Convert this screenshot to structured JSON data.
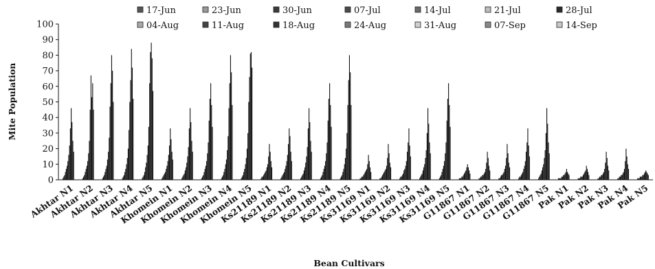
{
  "chart_data": {
    "type": "bar",
    "xlabel": "Bean Cultivars",
    "ylabel": "Mite Population",
    "ylim": [
      0,
      100
    ],
    "yticks": [
      "0",
      "10",
      "20",
      "30",
      "40",
      "50",
      "60",
      "70",
      "80",
      "90",
      "100"
    ],
    "legend_position": "top",
    "bar_color": "#111111",
    "categories": [
      "Akhtar N1",
      "Akhtar N2",
      "Akhtar N3",
      "Akhtar N4",
      "Akhtar N5",
      "Khomein N1",
      "Khomein N2",
      "Khomein N3",
      "Khomein N4",
      "Khomein N5",
      "Ks21189 N1",
      "Ks21189 N2",
      "Ks21189 N3",
      "Ks21189 N4",
      "Ks21189 N5",
      "Ks31169 N1",
      "Ks31169 N2",
      "Ks31169 N3",
      "Ks31169 N4",
      "Ks31169 N5",
      "G11867 N1",
      "G11867 N2",
      "G11867 N3",
      "G11867 N4",
      "G11867 N5",
      "Pak N1",
      "Pak N2",
      "Pak N3",
      "Pak N4",
      "Pak N5"
    ],
    "series_names": [
      "17-Jun",
      "23-Jun",
      "30-Jun",
      "07-Jul",
      "14-Jul",
      "21-Jul",
      "28-Jul",
      "04-Aug",
      "11-Aug",
      "18-Aug",
      "24-Aug",
      "31-Aug",
      "07-Sep",
      "14-Sep"
    ],
    "series_colors": [
      "#555555",
      "#9a9a9a",
      "#3a3a3a",
      "#4a4a4a",
      "#6a6a6a",
      "#bdbdbd",
      "#2a2a2a",
      "#a8a8a8",
      "#444444",
      "#333333",
      "#7a7a7a",
      "#d0d0d0",
      "#8a8a8a",
      "#c8c8c8"
    ],
    "values": [
      [
        1,
        2,
        3,
        5,
        7,
        9,
        12,
        16,
        22,
        33,
        46,
        37,
        25,
        18
      ],
      [
        1,
        2,
        3,
        5,
        7,
        9,
        12,
        17,
        25,
        45,
        67,
        53,
        62,
        45
      ],
      [
        1,
        2,
        3,
        5,
        7,
        9,
        13,
        18,
        27,
        47,
        62,
        80,
        70,
        50
      ],
      [
        1,
        2,
        3,
        5,
        7,
        10,
        14,
        20,
        32,
        50,
        64,
        84,
        72,
        52
      ],
      [
        1,
        2,
        3,
        5,
        8,
        11,
        16,
        22,
        34,
        62,
        82,
        88,
        78,
        57
      ],
      [
        1,
        2,
        3,
        4,
        5,
        7,
        9,
        12,
        16,
        22,
        33,
        26,
        18,
        13
      ],
      [
        1,
        2,
        3,
        4,
        6,
        8,
        11,
        15,
        21,
        33,
        46,
        37,
        25,
        18
      ],
      [
        1,
        2,
        3,
        5,
        7,
        9,
        12,
        17,
        24,
        38,
        52,
        62,
        48,
        34
      ],
      [
        1,
        2,
        3,
        5,
        7,
        10,
        13,
        19,
        28,
        46,
        62,
        80,
        69,
        48
      ],
      [
        1,
        2,
        3,
        5,
        7,
        10,
        14,
        20,
        30,
        50,
        66,
        81,
        82,
        72
      ],
      [
        1,
        2,
        2,
        3,
        4,
        5,
        6,
        8,
        10,
        15,
        23,
        18,
        12,
        8
      ],
      [
        1,
        2,
        3,
        4,
        5,
        7,
        9,
        12,
        16,
        23,
        33,
        28,
        18,
        12
      ],
      [
        1,
        2,
        3,
        4,
        6,
        8,
        11,
        15,
        21,
        33,
        46,
        37,
        25,
        18
      ],
      [
        1,
        2,
        3,
        5,
        7,
        9,
        12,
        17,
        24,
        38,
        52,
        62,
        48,
        34
      ],
      [
        1,
        2,
        3,
        5,
        7,
        10,
        14,
        20,
        30,
        48,
        64,
        80,
        69,
        48
      ],
      [
        1,
        1,
        2,
        2,
        3,
        4,
        5,
        6,
        7,
        10,
        16,
        12,
        8,
        5
      ],
      [
        1,
        1,
        2,
        3,
        4,
        5,
        6,
        7,
        9,
        14,
        23,
        17,
        11,
        8
      ],
      [
        1,
        2,
        2,
        3,
        4,
        6,
        7,
        9,
        12,
        18,
        24,
        33,
        22,
        15
      ],
      [
        1,
        2,
        3,
        4,
        6,
        8,
        10,
        14,
        19,
        30,
        46,
        36,
        24,
        17
      ],
      [
        1,
        2,
        3,
        5,
        7,
        9,
        12,
        17,
        24,
        38,
        52,
        62,
        48,
        34
      ],
      [
        1,
        1,
        1,
        2,
        2,
        3,
        4,
        5,
        6,
        8,
        10,
        8,
        6,
        4
      ],
      [
        1,
        1,
        2,
        2,
        3,
        3,
        4,
        5,
        7,
        11,
        18,
        14,
        9,
        6
      ],
      [
        1,
        1,
        2,
        3,
        3,
        4,
        5,
        7,
        9,
        14,
        23,
        17,
        11,
        8
      ],
      [
        1,
        2,
        2,
        3,
        4,
        5,
        7,
        9,
        12,
        18,
        24,
        33,
        22,
        15
      ],
      [
        1,
        2,
        3,
        4,
        6,
        8,
        10,
        14,
        19,
        30,
        46,
        36,
        24,
        17
      ],
      [
        1,
        1,
        1,
        1,
        2,
        2,
        3,
        3,
        4,
        5,
        7,
        5,
        4,
        3
      ],
      [
        1,
        1,
        1,
        2,
        2,
        2,
        3,
        4,
        5,
        6,
        9,
        7,
        5,
        3
      ],
      [
        1,
        1,
        2,
        2,
        3,
        3,
        4,
        5,
        7,
        11,
        18,
        14,
        9,
        6
      ],
      [
        1,
        1,
        2,
        2,
        3,
        3,
        4,
        5,
        7,
        12,
        20,
        15,
        10,
        7
      ],
      [
        1,
        1,
        1,
        2,
        2,
        2,
        3,
        3,
        4,
        5,
        6,
        5,
        4,
        3
      ]
    ]
  }
}
